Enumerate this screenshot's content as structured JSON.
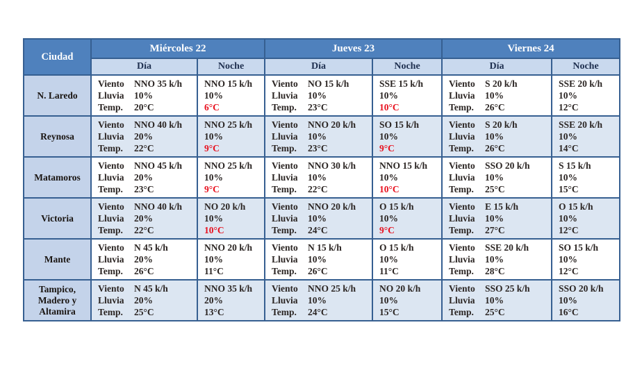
{
  "table": {
    "corner_label": "Ciudad",
    "days": [
      {
        "label": "Miércoles 22"
      },
      {
        "label": "Jueves 23"
      },
      {
        "label": "Viernes 24"
      }
    ],
    "period_labels": [
      "Día",
      "Noche"
    ],
    "row_labels": {
      "wind": "Viento",
      "rain": "Lluvia",
      "temp": "Temp."
    },
    "rows": [
      {
        "city": "N. Laredo",
        "cells": [
          {
            "type": "dia",
            "wind": "NNO 35 k/h",
            "rain": "10%",
            "temp": "20°C",
            "temp_red": false
          },
          {
            "type": "noche",
            "wind": "NNO 15 k/h",
            "rain": "10%",
            "temp": "6°C",
            "temp_red": true
          },
          {
            "type": "dia",
            "wind": "NO 15 k/h",
            "rain": "10%",
            "temp": "23°C",
            "temp_red": false
          },
          {
            "type": "noche",
            "wind": "SSE 15 k/h",
            "rain": "10%",
            "temp": "10°C",
            "temp_red": true
          },
          {
            "type": "dia",
            "wind": "S 20 k/h",
            "rain": "10%",
            "temp": "26°C",
            "temp_red": false
          },
          {
            "type": "noche",
            "wind": "SSE 20 k/h",
            "rain": "10%",
            "temp": "12°C",
            "temp_red": false
          }
        ]
      },
      {
        "city": "Reynosa",
        "cells": [
          {
            "type": "dia",
            "wind": "NNO 40 k/h",
            "rain": "20%",
            "temp": "22°C",
            "temp_red": false
          },
          {
            "type": "noche",
            "wind": "NNO 25 k/h",
            "rain": "10%",
            "temp": "9°C",
            "temp_red": true
          },
          {
            "type": "dia",
            "wind": "NNO 20 k/h",
            "rain": "10%",
            "temp": "23°C",
            "temp_red": false
          },
          {
            "type": "noche",
            "wind": "SO 15 k/h",
            "rain": "10%",
            "temp": "9°C",
            "temp_red": true
          },
          {
            "type": "dia",
            "wind": "S 20 k/h",
            "rain": "10%",
            "temp": "26°C",
            "temp_red": false
          },
          {
            "type": "noche",
            "wind": "SSE 20 k/h",
            "rain": "10%",
            "temp": "14°C",
            "temp_red": false
          }
        ]
      },
      {
        "city": "Matamoros",
        "cells": [
          {
            "type": "dia",
            "wind": "NNO 45 k/h",
            "rain": "20%",
            "temp": "23°C",
            "temp_red": false
          },
          {
            "type": "noche",
            "wind": "NNO 25 k/h",
            "rain": "10%",
            "temp": "9°C",
            "temp_red": true
          },
          {
            "type": "dia",
            "wind": "NNO 30 k/h",
            "rain": "10%",
            "temp": "22°C",
            "temp_red": false
          },
          {
            "type": "noche",
            "wind": "NNO 15 k/h",
            "rain": "10%",
            "temp": "10°C",
            "temp_red": true
          },
          {
            "type": "dia",
            "wind": "SSO 20 k/h",
            "rain": "10%",
            "temp": "25°C",
            "temp_red": false
          },
          {
            "type": "noche",
            "wind": "S 15 k/h",
            "rain": "10%",
            "temp": "15°C",
            "temp_red": false
          }
        ]
      },
      {
        "city": "Victoria",
        "cells": [
          {
            "type": "dia",
            "wind": "NNO 40 k/h",
            "rain": "20%",
            "temp": "22°C",
            "temp_red": false
          },
          {
            "type": "noche",
            "wind": "NO 20 k/h",
            "rain": "10%",
            "temp": "10°C",
            "temp_red": true
          },
          {
            "type": "dia",
            "wind": "NNO 20 k/h",
            "rain": "10%",
            "temp": "24°C",
            "temp_red": false
          },
          {
            "type": "noche",
            "wind": "O 15 k/h",
            "rain": "10%",
            "temp": "9°C",
            "temp_red": true
          },
          {
            "type": "dia",
            "wind": "E 15 k/h",
            "rain": "10%",
            "temp": "27°C",
            "temp_red": false
          },
          {
            "type": "noche",
            "wind": "O 15 k/h",
            "rain": "10%",
            "temp": "12°C",
            "temp_red": false
          }
        ]
      },
      {
        "city": "Mante",
        "cells": [
          {
            "type": "dia",
            "wind": "N 45 k/h",
            "rain": "20%",
            "temp": "26°C",
            "temp_red": false
          },
          {
            "type": "noche",
            "wind": "NNO 20 k/h",
            "rain": "10%",
            "temp": "11°C",
            "temp_red": false
          },
          {
            "type": "dia",
            "wind": "N 15 k/h",
            "rain": "10%",
            "temp": "26°C",
            "temp_red": false
          },
          {
            "type": "noche",
            "wind": "O 15 k/h",
            "rain": "10%",
            "temp": "11°C",
            "temp_red": false
          },
          {
            "type": "dia",
            "wind": "SSE 20 k/h",
            "rain": "10%",
            "temp": "28°C",
            "temp_red": false
          },
          {
            "type": "noche",
            "wind": "SO 15 k/h",
            "rain": "10%",
            "temp": "12°C",
            "temp_red": false
          }
        ]
      },
      {
        "city": "Tampico, Madero y Altamira",
        "cells": [
          {
            "type": "dia",
            "wind": "N 45 k/h",
            "rain": "20%",
            "temp": "25°C",
            "temp_red": false
          },
          {
            "type": "noche",
            "wind": "NNO 35 k/h",
            "rain": "20%",
            "temp": "13°C",
            "temp_red": false
          },
          {
            "type": "dia",
            "wind": "NNO 25 k/h",
            "rain": "10%",
            "temp": "24°C",
            "temp_red": false
          },
          {
            "type": "noche",
            "wind": "NO 20 k/h",
            "rain": "10%",
            "temp": "15°C",
            "temp_red": false
          },
          {
            "type": "dia",
            "wind": "SSO 25 k/h",
            "rain": "10%",
            "temp": "25°C",
            "temp_red": false
          },
          {
            "type": "noche",
            "wind": "SSO 20 k/h",
            "rain": "10%",
            "temp": "16°C",
            "temp_red": false
          }
        ]
      }
    ]
  },
  "colors": {
    "header_blue": "#4f81bd",
    "border_blue": "#365f91",
    "subheader_bg": "#c9d9ee",
    "subheader_text": "#1f3050",
    "city_col_bg": "#c4d3ea",
    "city_text": "#1a1512",
    "alt_row_bg": "#dce6f2",
    "body_text": "#2b2523",
    "temp_alert_red": "#e8101e",
    "header_text": "#ffffff"
  }
}
